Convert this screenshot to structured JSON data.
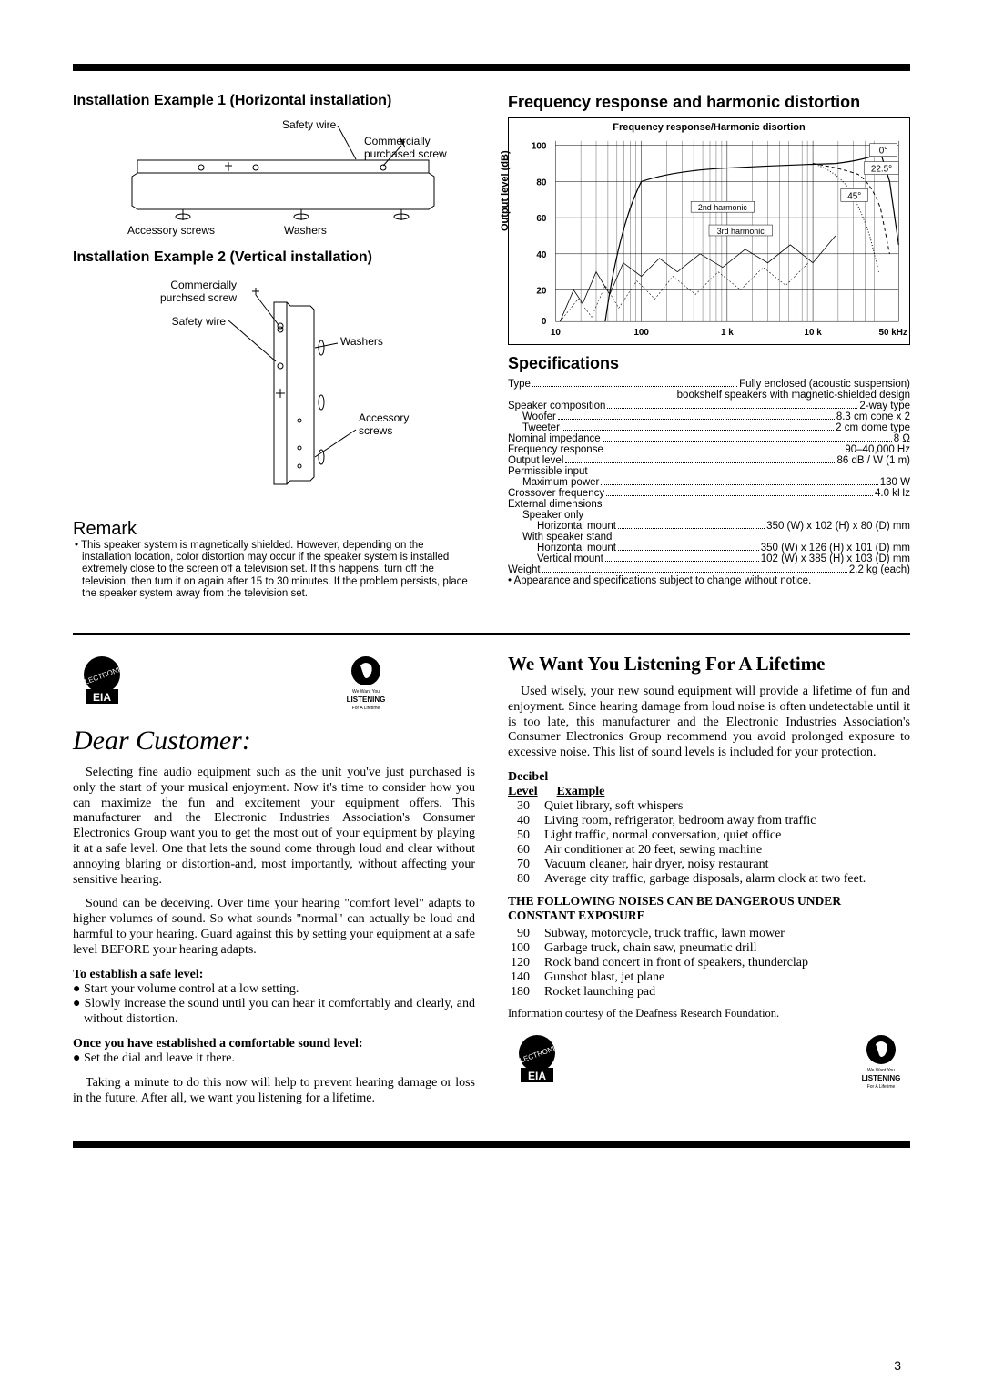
{
  "install": {
    "ex1_title": "Installation Example 1 (Horizontal installation)",
    "ex2_title": "Installation Example 2 (Vertical installation)",
    "safety_wire": "Safety wire",
    "comm_screw": "Commercially purchased screw",
    "comm_screw2": "Commercially purchsed screw",
    "accessory_screws": "Accessory screws",
    "washers": "Washers"
  },
  "remark": {
    "heading": "Remark",
    "body": "• This speaker system is magnetically shielded. However, depending on the installation location, color distortion may occur if the speaker system is installed extremely close to the screen off a television set. If this happens, turn off the television, then turn it on again after 15 to 30 minutes. If the problem persists, place the speaker system away from the television set."
  },
  "freq": {
    "heading": "Frequency response and harmonic distortion",
    "chart": {
      "title": "Frequency response/Harmonic disortion",
      "ylabel": "Output level (dB)",
      "xticks": [
        "10",
        "100",
        "1 k",
        "10 k",
        "50 kHz"
      ],
      "yticks": [
        "0",
        "20",
        "40",
        "60",
        "80",
        "100"
      ],
      "curve_labels": [
        "0°",
        "22.5°",
        "45°",
        "2nd harmonic",
        "3rd harmonic"
      ],
      "ylim": [
        0,
        105
      ],
      "background": "#ffffff",
      "grid_color": "#000000"
    }
  },
  "specs": {
    "heading": "Specifications",
    "lines": [
      {
        "label": "Type",
        "value": "Fully enclosed (acoustic suspension)",
        "indent": 0
      },
      {
        "label": "",
        "value": "bookshelf speakers with magnetic-shielded design",
        "indent": 0,
        "nodots": true
      },
      {
        "label": "Speaker composition",
        "value": "2-way type",
        "indent": 0
      },
      {
        "label": "Woofer",
        "value": "8.3 cm cone x 2",
        "indent": 1
      },
      {
        "label": "Tweeter",
        "value": "2 cm dome type",
        "indent": 1
      },
      {
        "label": "Nominal impedance",
        "value": "8 Ω",
        "indent": 0
      },
      {
        "label": "Frequency response",
        "value": "90–40,000 Hz",
        "indent": 0
      },
      {
        "label": "Output level",
        "value": "86 dB / W (1 m)",
        "indent": 0
      },
      {
        "label": "Permissible input",
        "value": "",
        "indent": 0,
        "nodots": true
      },
      {
        "label": "Maximum power",
        "value": "130 W",
        "indent": 1
      },
      {
        "label": "Crossover frequency",
        "value": "4.0 kHz",
        "indent": 0
      },
      {
        "label": "External dimensions",
        "value": "",
        "indent": 0,
        "nodots": true
      },
      {
        "label": "Speaker only",
        "value": "",
        "indent": 1,
        "nodots": true
      },
      {
        "label": "Horizontal mount",
        "value": "350 (W) x 102 (H) x 80 (D) mm",
        "indent": 2
      },
      {
        "label": "With speaker stand",
        "value": "",
        "indent": 1,
        "nodots": true
      },
      {
        "label": "Horizontal mount",
        "value": "350 (W) x 126 (H) x 101 (D) mm",
        "indent": 2
      },
      {
        "label": "Vertical mount",
        "value": "102 (W) x 385 (H) x 103 (D) mm",
        "indent": 2
      },
      {
        "label": "Weight",
        "value": "2.2 kg (each)",
        "indent": 0
      }
    ],
    "note": "• Appearance and specifications subject to change without notice."
  },
  "letter": {
    "dear": "Dear Customer:",
    "p1": "Selecting fine audio equipment such as the unit you've just purchased is only the start of your musical enjoyment. Now it's time to consider how you can maximize the fun and excitement your equipment offers. This manufacturer and the Electronic Industries Association's Consumer Electronics Group want you to get the most out of your equipment by playing it at a safe level. One that lets the sound come through loud and clear without annoying blaring or distortion-and, most importantly, without affecting your sensitive hearing.",
    "p2": "Sound can be deceiving. Over time your hearing \"comfort level\" adapts to higher volumes of sound. So what sounds \"normal\" can actually be loud and harmful to your hearing. Guard against this by setting your equipment at a safe level BEFORE your hearing adapts.",
    "safe_h": "To establish a safe level:",
    "safe_b1": "● Start your volume control at a low setting.",
    "safe_b2": "● Slowly increase the sound until you can hear it comfortably and clearly, and without distortion.",
    "once_h": "Once you have established a comfortable sound level:",
    "once_b1": "● Set the dial and leave it there.",
    "p3": "Taking a minute to do this now will help to prevent hearing damage or loss in the future. After all, we want you listening for a lifetime."
  },
  "lifetime": {
    "heading": "We Want You Listening For A Lifetime",
    "p1": "Used wisely, your new sound equipment will provide a lifetime of fun and enjoyment. Since hearing damage from loud noise is often undetectable until it is too late, this manufacturer and the Electronic Industries Association's Consumer Electronics Group recommend you avoid prolonged exposure to excessive noise. This list of sound levels is included for your protection.",
    "db_h1": "Decibel",
    "db_h2": "Level",
    "db_h3": "Example",
    "rows1": [
      {
        "n": "30",
        "t": "Quiet library, soft whispers"
      },
      {
        "n": "40",
        "t": "Living room, refrigerator, bedroom away from traffic"
      },
      {
        "n": "50",
        "t": "Light traffic, normal conversation, quiet office"
      },
      {
        "n": "60",
        "t": "Air conditioner at 20 feet, sewing machine"
      },
      {
        "n": "70",
        "t": "Vacuum cleaner, hair dryer, noisy restaurant"
      },
      {
        "n": "80",
        "t": "Average city traffic, garbage disposals, alarm clock at two feet."
      }
    ],
    "danger_h": "THE FOLLOWING NOISES CAN BE DANGEROUS UNDER CONSTANT EXPOSURE",
    "rows2": [
      {
        "n": "90",
        "t": "Subway, motorcycle, truck traffic, lawn mower"
      },
      {
        "n": "100",
        "t": "Garbage truck, chain saw, pneumatic drill"
      },
      {
        "n": "120",
        "t": "Rock band concert in front of speakers, thunderclap"
      },
      {
        "n": "140",
        "t": "Gunshot blast, jet plane"
      },
      {
        "n": "180",
        "t": "Rocket launching pad"
      }
    ],
    "info_note": "Information courtesy of the Deafness Research Foundation."
  },
  "page_num": "3",
  "logos": {
    "eia_text": "EIA",
    "listen_top": "We Want You",
    "listen_mid": "LISTENING",
    "listen_bot": "For A Lifetime"
  }
}
